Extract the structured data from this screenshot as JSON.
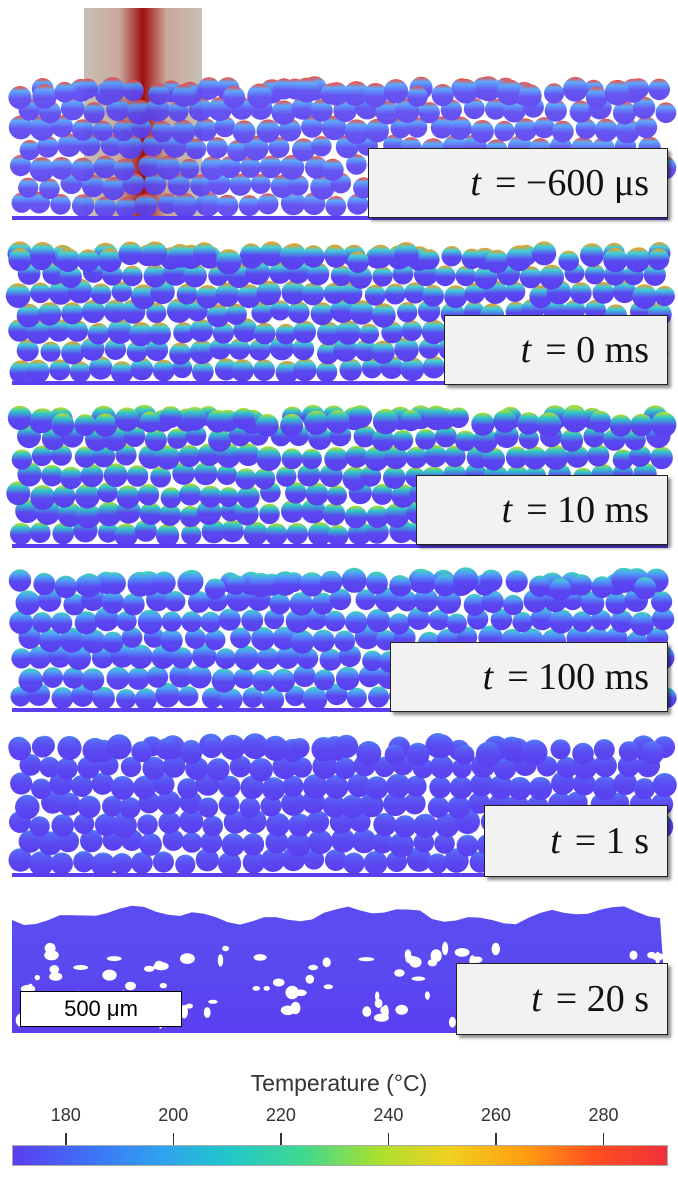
{
  "panels": [
    {
      "time_label": "= −600 μs",
      "top_color": "#ff3a20",
      "mid_color": "#4fa2ff",
      "laser": true,
      "merged": false
    },
    {
      "time_label": "= 0 ms",
      "top_color": "#ff9a10",
      "mid_color": "#3fd0d8",
      "laser": false,
      "merged": false
    },
    {
      "time_label": "= 10 ms",
      "top_color": "#c0e020",
      "mid_color": "#30c8c8",
      "laser": false,
      "merged": false
    },
    {
      "time_label": "= 100 ms",
      "top_color": "#3fd8b0",
      "mid_color": "#4f9ff8",
      "laser": false,
      "merged": false
    },
    {
      "time_label": "= 1 s",
      "top_color": "#4f80f8",
      "mid_color": "#5a5cf5",
      "laser": false,
      "merged": false
    },
    {
      "time_label": "= 20 s",
      "top_color": "#5a4cf0",
      "mid_color": "#5a4cf0",
      "laser": false,
      "merged": true
    }
  ],
  "time_symbol": "t",
  "scale_bar": "500 μm",
  "colorbar": {
    "title": "Temperature (°C)",
    "min": 170,
    "max": 292,
    "ticks": [
      "180",
      "200",
      "220",
      "240",
      "260",
      "280"
    ],
    "tick_values": [
      180,
      200,
      220,
      240,
      260,
      280
    ],
    "colors": [
      "#5a3ff0",
      "#3f6ff8",
      "#2fa0f0",
      "#20c8c8",
      "#40d890",
      "#a8e030",
      "#f0d020",
      "#ffa010",
      "#ff5020",
      "#f0303a"
    ]
  }
}
